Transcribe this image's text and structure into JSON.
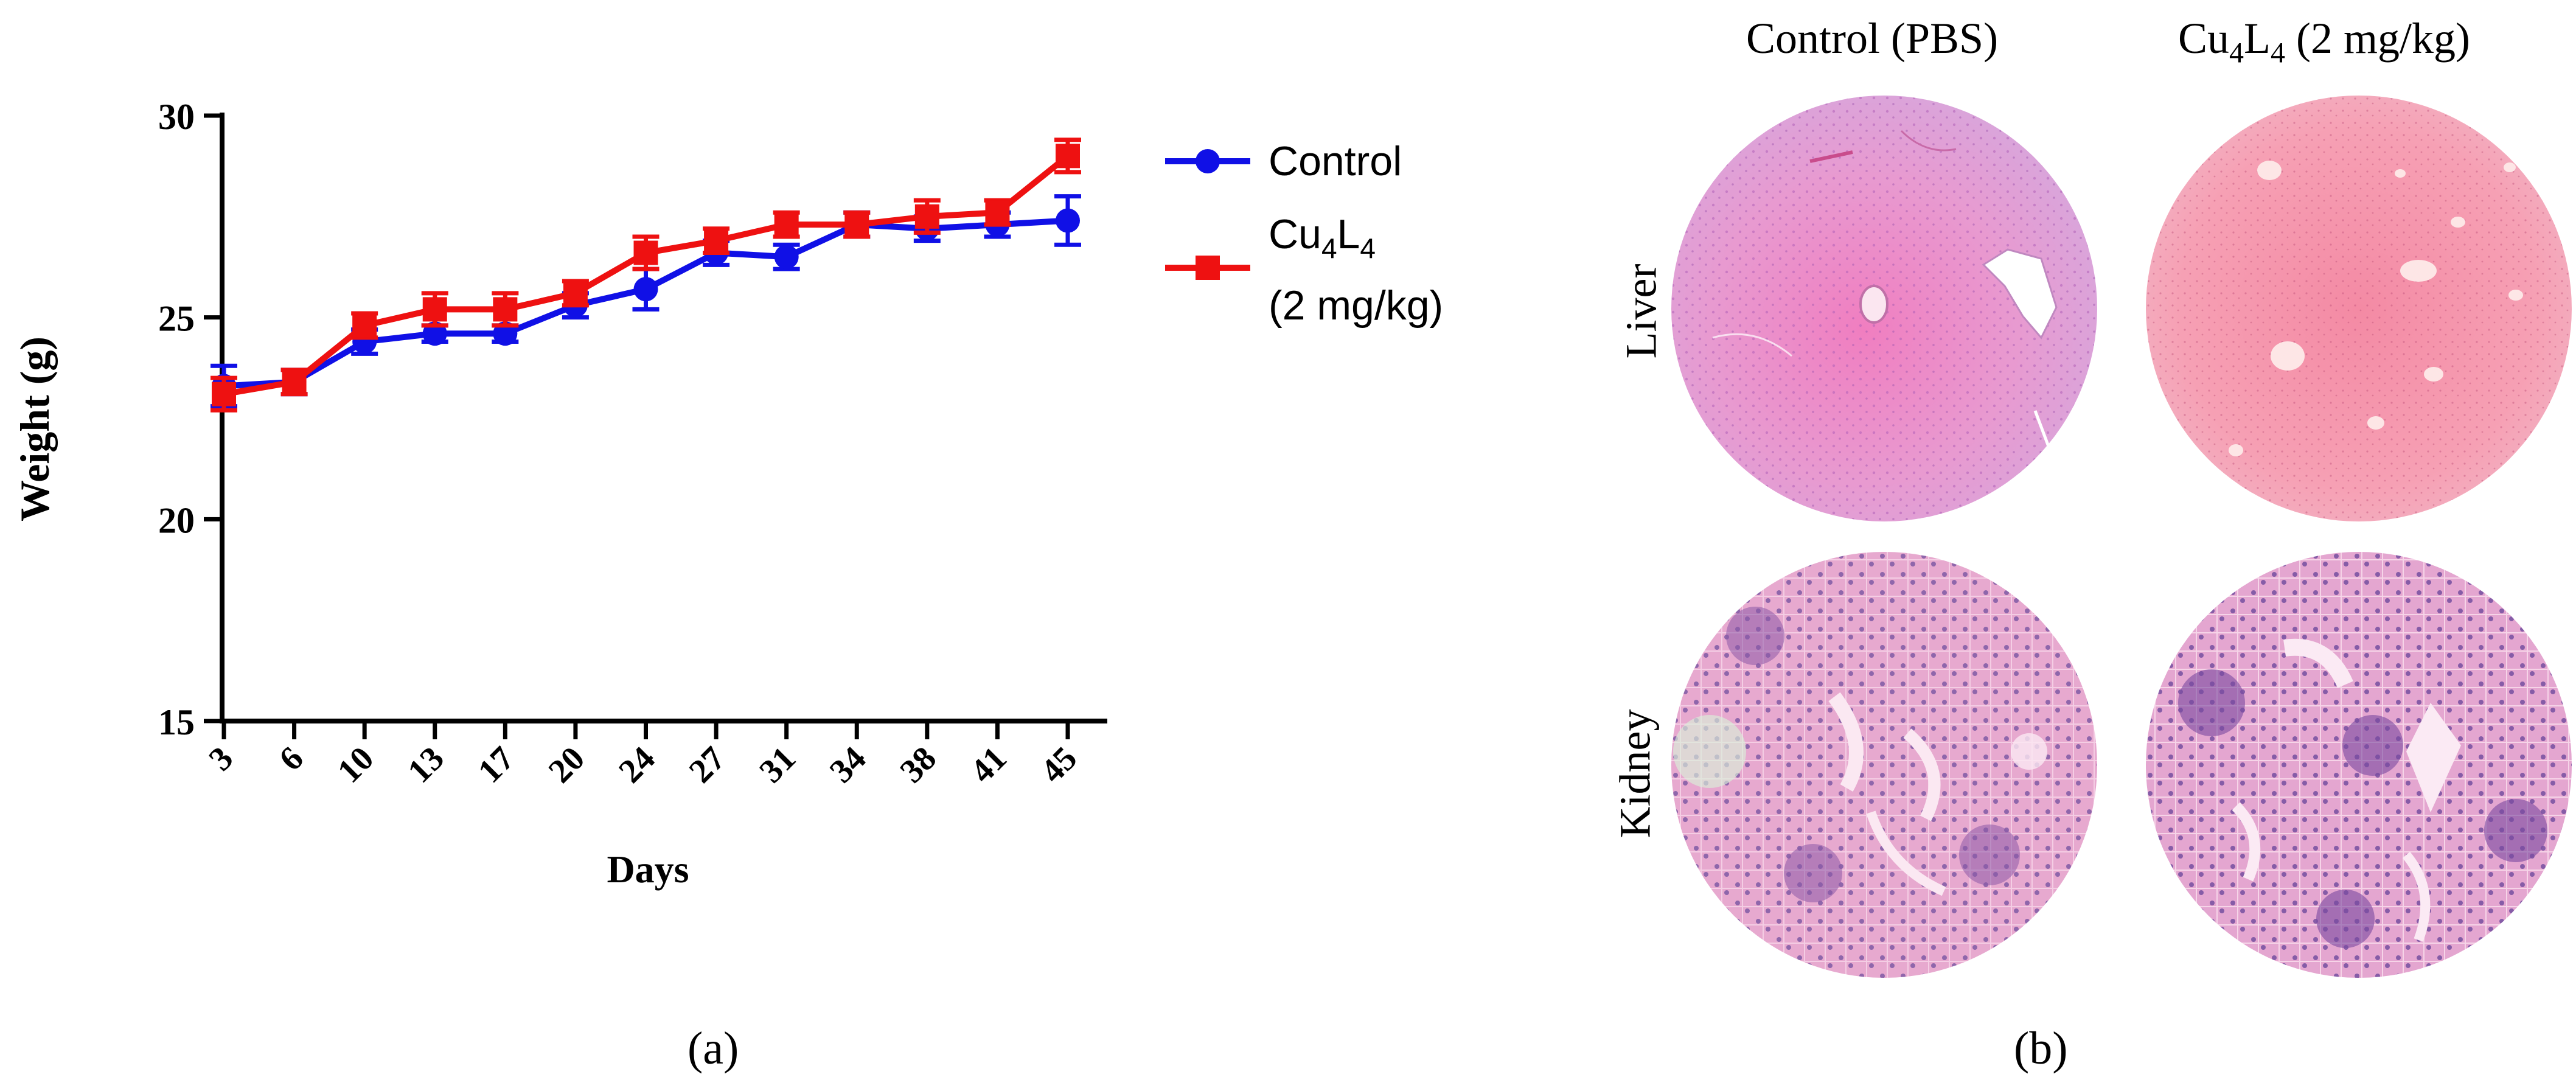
{
  "chart_data": {
    "type": "line",
    "x": [
      3,
      6,
      10,
      13,
      17,
      20,
      24,
      27,
      31,
      34,
      38,
      41,
      45
    ],
    "xticklabels": [
      "3",
      "6",
      "10",
      "13",
      "17",
      "20",
      "24",
      "27",
      "31",
      "34",
      "38",
      "41",
      "45"
    ],
    "yticks": [
      15,
      20,
      25,
      30
    ],
    "yticklabels": [
      "15",
      "20",
      "25",
      "30"
    ],
    "ylim": [
      15,
      30
    ],
    "xlabel": "Days",
    "ylabel": "Weight (g)",
    "series": [
      {
        "name": "Control",
        "marker": "circle",
        "color": "#1010e6",
        "values": [
          23.3,
          23.4,
          24.4,
          24.6,
          24.6,
          25.3,
          25.7,
          26.6,
          26.5,
          27.3,
          27.2,
          27.3,
          27.4
        ],
        "errors": [
          0.5,
          0.3,
          0.3,
          0.2,
          0.2,
          0.3,
          0.5,
          0.3,
          0.3,
          0.3,
          0.3,
          0.3,
          0.6
        ]
      },
      {
        "name": "Cu4L4 (2 mg/kg)",
        "marker": "square",
        "color": "#ee1111",
        "values": [
          23.1,
          23.4,
          24.8,
          25.2,
          25.2,
          25.6,
          26.6,
          26.9,
          27.3,
          27.3,
          27.5,
          27.6,
          29.0
        ],
        "errors": [
          0.4,
          0.3,
          0.3,
          0.4,
          0.4,
          0.3,
          0.4,
          0.3,
          0.3,
          0.3,
          0.4,
          0.3,
          0.4
        ]
      }
    ]
  },
  "legend": {
    "control_label": "Control",
    "treated_base": "Cu",
    "treated_sub1": "4",
    "treated_mid": "L",
    "treated_sub2": "4",
    "treated_line2": "(2 mg/kg)"
  },
  "panel_a": {
    "caption": "(a)"
  },
  "panel_b": {
    "caption": "(b)",
    "col_control": "Control (PBS)",
    "col_treated_base": "Cu",
    "col_treated_sub1": "4",
    "col_treated_mid": "L",
    "col_treated_sub2": "4",
    "col_treated_rest": " (2 mg/kg)",
    "row_liver": "Liver",
    "row_kidney": "Kidney"
  },
  "colors": {
    "control": "#1010e6",
    "treated": "#ee1111",
    "liver_control_bg": "#e89ad0",
    "liver_treated_bg": "#f6a8b8",
    "kidney_bg": "#e6a6cf",
    "nuclei": "#6a4a9c"
  }
}
